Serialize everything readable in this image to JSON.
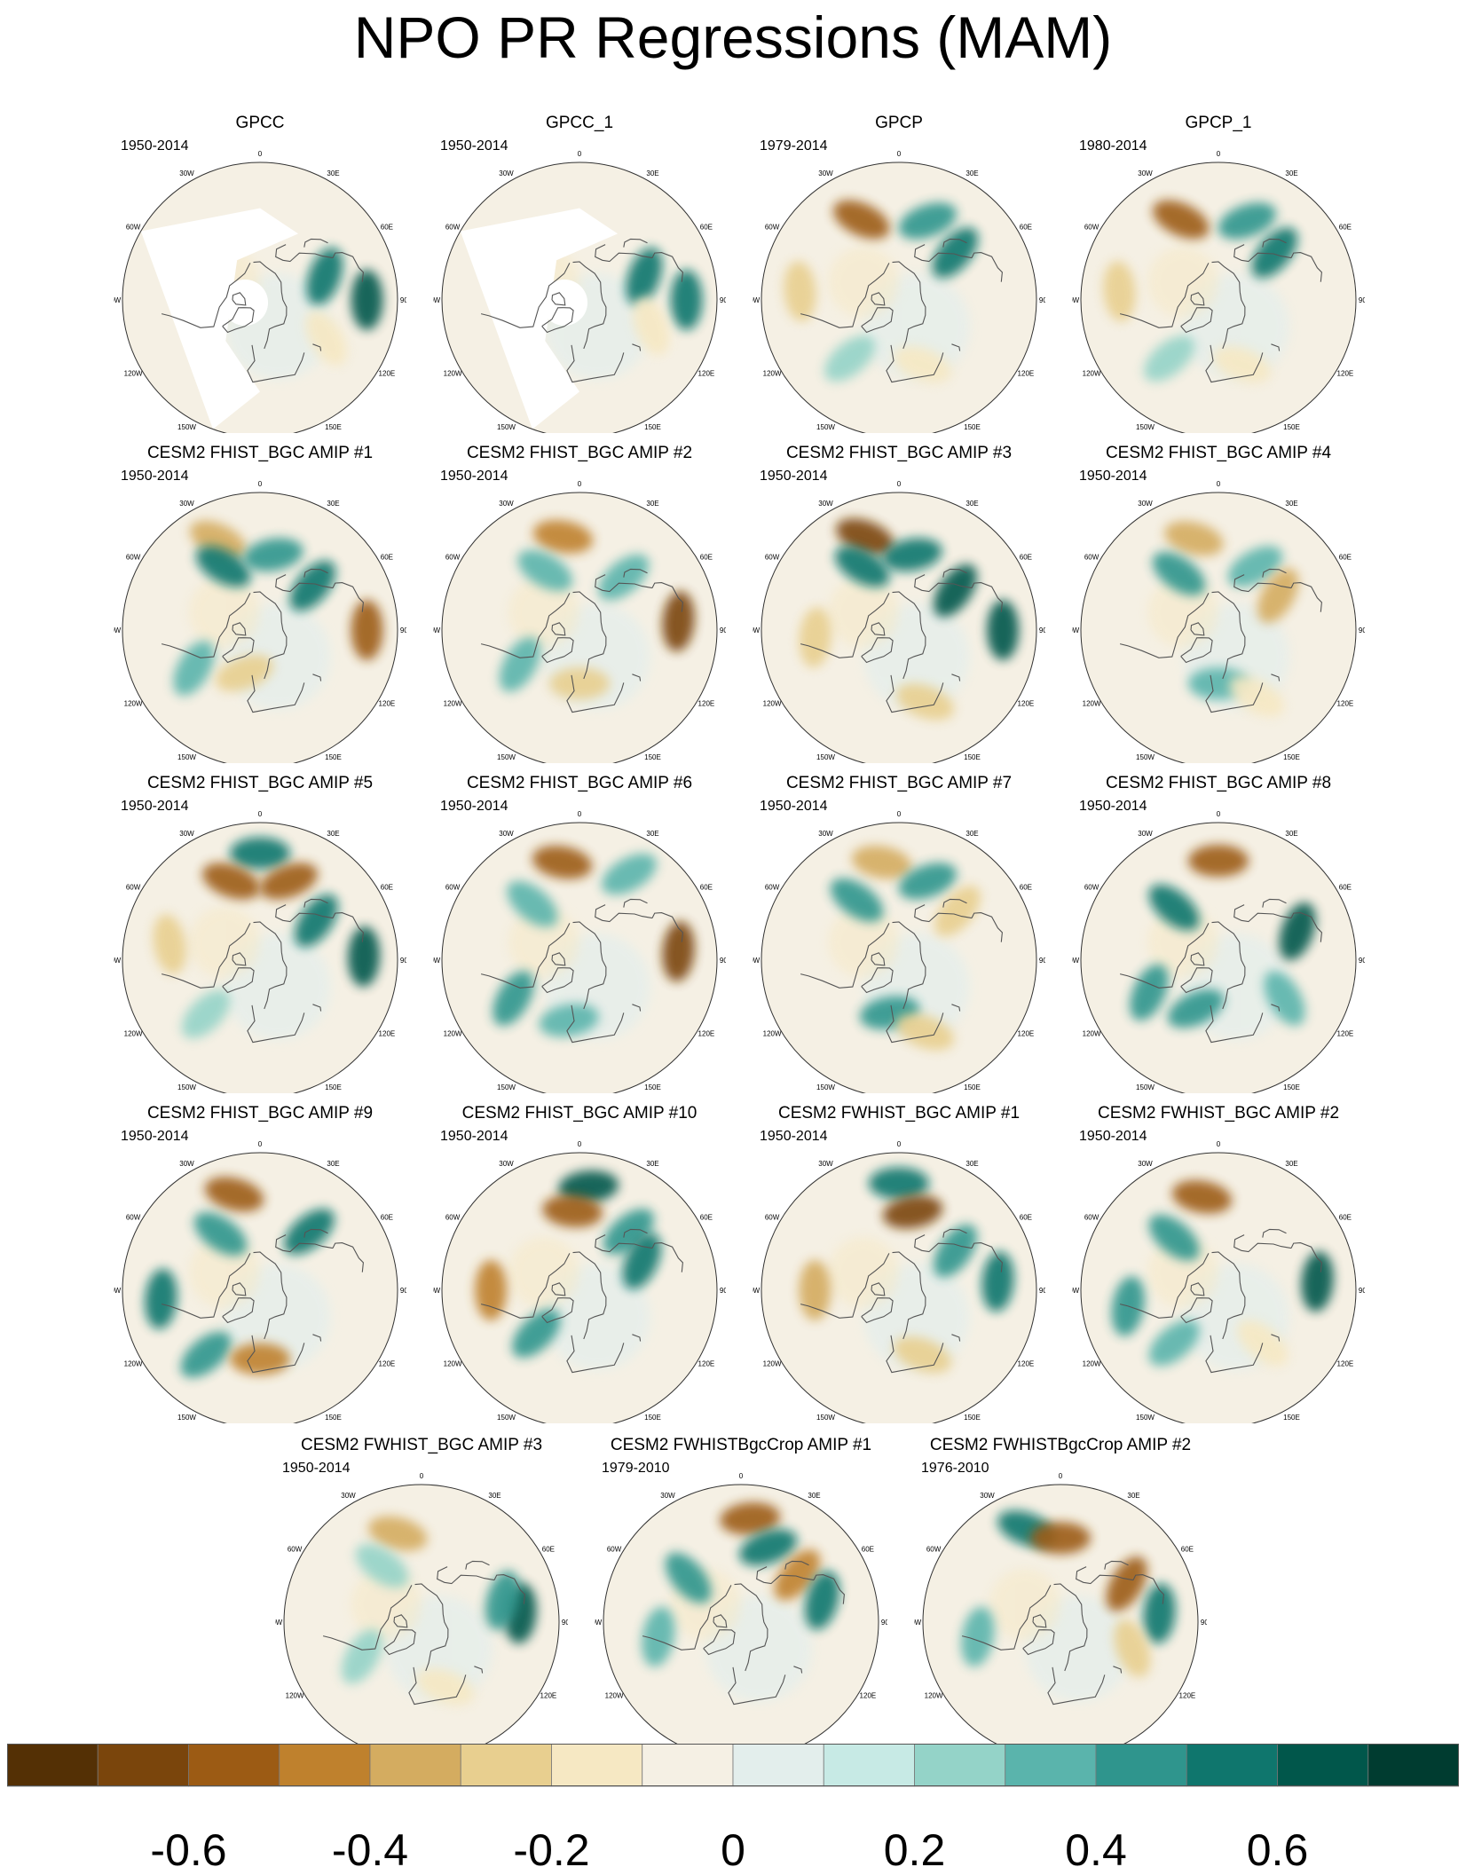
{
  "title": "NPO PR Regressions (MAM)",
  "lon_labels": [
    "180",
    "150E",
    "120E",
    "90E",
    "60E",
    "30E",
    "0",
    "30W",
    "60W",
    "90W",
    "120W",
    "150W"
  ],
  "colors": {
    "levels": [
      "#543005",
      "#7a450c",
      "#9c5b14",
      "#bf812d",
      "#d4ac60",
      "#e8cf8f",
      "#f6e8c3",
      "#f5f0e4",
      "#e3eeec",
      "#c7eae5",
      "#94d3c8",
      "#5ab4ac",
      "#2f958d",
      "#0f766d",
      "#01574b",
      "#003c30"
    ],
    "coast": "#555555",
    "rim": "#333333",
    "missing": "#ffffff"
  },
  "chart_data": {
    "type": "heatmap",
    "projection": "north-polar-stereographic",
    "variable": "PR",
    "season": "MAM",
    "colorbar": {
      "labels": [
        "-0.6",
        "-0.4",
        "-0.2",
        "0",
        "0.2",
        "0.4",
        "0.6"
      ],
      "label_values": [
        -0.6,
        -0.4,
        -0.2,
        0,
        0.2,
        0.4,
        0.6
      ],
      "levels": [
        -0.7,
        -0.6,
        -0.5,
        -0.4,
        -0.3,
        -0.2,
        -0.1,
        0,
        0.1,
        0.2,
        0.3,
        0.4,
        0.5,
        0.6,
        0.7
      ],
      "range": [
        -0.8,
        0.8
      ]
    },
    "panels": [
      {
        "title": "GPCC",
        "years": "1950-2014",
        "missing_land_ocean": true,
        "anomalies": [
          {
            "lon": 110,
            "lat": 45,
            "value": 0.5
          },
          {
            "lon": 90,
            "lat": 20,
            "value": 0.6
          },
          {
            "lon": 60,
            "lat": 40,
            "value": -0.15
          }
        ]
      },
      {
        "title": "GPCC_1",
        "years": "1950-2014",
        "missing_land_ocean": true,
        "anomalies": [
          {
            "lon": 110,
            "lat": 45,
            "value": 0.5
          },
          {
            "lon": 90,
            "lat": 20,
            "value": 0.55
          },
          {
            "lon": 70,
            "lat": 40,
            "value": -0.2
          }
        ]
      },
      {
        "title": "GPCP",
        "years": "1979-2014",
        "anomalies": [
          {
            "lon": -155,
            "lat": 32,
            "value": -0.6
          },
          {
            "lon": 160,
            "lat": 35,
            "value": 0.4
          },
          {
            "lon": 130,
            "lat": 42,
            "value": 0.5
          },
          {
            "lon": -95,
            "lat": 25,
            "value": -0.3
          },
          {
            "lon": -40,
            "lat": 40,
            "value": 0.25
          },
          {
            "lon": 20,
            "lat": 45,
            "value": -0.15
          }
        ]
      },
      {
        "title": "GPCP_1",
        "years": "1980-2014",
        "anomalies": [
          {
            "lon": -155,
            "lat": 32,
            "value": -0.6
          },
          {
            "lon": 160,
            "lat": 35,
            "value": 0.4
          },
          {
            "lon": 130,
            "lat": 42,
            "value": 0.55
          },
          {
            "lon": -95,
            "lat": 25,
            "value": -0.3
          },
          {
            "lon": -40,
            "lat": 40,
            "value": 0.25
          },
          {
            "lon": 20,
            "lat": 45,
            "value": -0.15
          }
        ]
      },
      {
        "title": "CESM2 FHIST_BGC AMIP #1",
        "years": "1950-2014",
        "anomalies": [
          {
            "lon": -155,
            "lat": 25,
            "value": -0.4
          },
          {
            "lon": -150,
            "lat": 42,
            "value": 0.5
          },
          {
            "lon": 170,
            "lat": 40,
            "value": 0.4
          },
          {
            "lon": 130,
            "lat": 45,
            "value": 0.55
          },
          {
            "lon": 90,
            "lat": 20,
            "value": -0.6
          },
          {
            "lon": -60,
            "lat": 40,
            "value": 0.35
          },
          {
            "lon": -20,
            "lat": 60,
            "value": -0.3
          }
        ]
      },
      {
        "title": "CESM2 FHIST_BGC AMIP #2",
        "years": "1950-2014",
        "anomalies": [
          {
            "lon": -170,
            "lat": 28,
            "value": -0.5
          },
          {
            "lon": -150,
            "lat": 45,
            "value": 0.35
          },
          {
            "lon": 140,
            "lat": 45,
            "value": 0.3
          },
          {
            "lon": 95,
            "lat": 25,
            "value": -0.7
          },
          {
            "lon": -60,
            "lat": 45,
            "value": 0.3
          },
          {
            "lon": 0,
            "lat": 55,
            "value": -0.3
          }
        ]
      },
      {
        "title": "CESM2 FHIST_BGC AMIP #3",
        "years": "1950-2014",
        "anomalies": [
          {
            "lon": -160,
            "lat": 25,
            "value": -0.7
          },
          {
            "lon": -150,
            "lat": 42,
            "value": 0.5
          },
          {
            "lon": 170,
            "lat": 40,
            "value": 0.5
          },
          {
            "lon": 125,
            "lat": 45,
            "value": 0.6
          },
          {
            "lon": 90,
            "lat": 22,
            "value": 0.65
          },
          {
            "lon": -85,
            "lat": 35,
            "value": -0.3
          },
          {
            "lon": 20,
            "lat": 40,
            "value": -0.3
          }
        ]
      },
      {
        "title": "CESM2 FHIST_BGC AMIP #4",
        "years": "1950-2014",
        "anomalies": [
          {
            "lon": -165,
            "lat": 28,
            "value": -0.35
          },
          {
            "lon": -145,
            "lat": 45,
            "value": 0.45
          },
          {
            "lon": 150,
            "lat": 42,
            "value": 0.3
          },
          {
            "lon": 120,
            "lat": 45,
            "value": -0.4
          },
          {
            "lon": 0,
            "lat": 55,
            "value": 0.35
          },
          {
            "lon": 30,
            "lat": 40,
            "value": -0.2
          }
        ]
      },
      {
        "title": "CESM2 FHIST_BGC AMIP #5",
        "years": "1950-2014",
        "anomalies": [
          {
            "lon": 180,
            "lat": 20,
            "value": 0.5
          },
          {
            "lon": -160,
            "lat": 35,
            "value": -0.6
          },
          {
            "lon": 160,
            "lat": 35,
            "value": -0.55
          },
          {
            "lon": 125,
            "lat": 45,
            "value": 0.5
          },
          {
            "lon": 92,
            "lat": 22,
            "value": 0.65
          },
          {
            "lon": -100,
            "lat": 30,
            "value": -0.3
          },
          {
            "lon": -45,
            "lat": 40,
            "value": 0.2
          }
        ]
      },
      {
        "title": "CESM2 FHIST_BGC AMIP #6",
        "years": "1950-2014",
        "anomalies": [
          {
            "lon": -170,
            "lat": 25,
            "value": -0.55
          },
          {
            "lon": -140,
            "lat": 42,
            "value": 0.35
          },
          {
            "lon": 150,
            "lat": 25,
            "value": 0.3
          },
          {
            "lon": 95,
            "lat": 25,
            "value": -0.7
          },
          {
            "lon": -60,
            "lat": 40,
            "value": 0.4
          },
          {
            "lon": -10,
            "lat": 50,
            "value": 0.35
          }
        ]
      },
      {
        "title": "CESM2 FHIST_BGC AMIP #7",
        "years": "1950-2014",
        "anomalies": [
          {
            "lon": -170,
            "lat": 25,
            "value": -0.4
          },
          {
            "lon": -145,
            "lat": 42,
            "value": 0.4
          },
          {
            "lon": 160,
            "lat": 35,
            "value": 0.45
          },
          {
            "lon": 130,
            "lat": 40,
            "value": -0.3
          },
          {
            "lon": -10,
            "lat": 55,
            "value": 0.45
          },
          {
            "lon": 20,
            "lat": 40,
            "value": -0.3
          }
        ]
      },
      {
        "title": "CESM2 FHIST_BGC AMIP #8",
        "years": "1950-2014",
        "anomalies": [
          {
            "lon": 180,
            "lat": 25,
            "value": -0.6
          },
          {
            "lon": -140,
            "lat": 45,
            "value": 0.5
          },
          {
            "lon": 110,
            "lat": 35,
            "value": 0.6
          },
          {
            "lon": -65,
            "lat": 40,
            "value": 0.4
          },
          {
            "lon": -25,
            "lat": 55,
            "value": 0.45
          },
          {
            "lon": 60,
            "lat": 40,
            "value": 0.3
          }
        ]
      },
      {
        "title": "CESM2 FHIST_BGC AMIP #9",
        "years": "1950-2014",
        "anomalies": [
          {
            "lon": -165,
            "lat": 25,
            "value": -0.6
          },
          {
            "lon": -145,
            "lat": 45,
            "value": 0.45
          },
          {
            "lon": 140,
            "lat": 40,
            "value": 0.5
          },
          {
            "lon": -85,
            "lat": 25,
            "value": 0.5
          },
          {
            "lon": -40,
            "lat": 35,
            "value": 0.45
          },
          {
            "lon": 0,
            "lat": 45,
            "value": -0.5
          }
        ]
      },
      {
        "title": "CESM2 FHIST_BGC AMIP #10",
        "years": "1950-2014",
        "anomalies": [
          {
            "lon": 175,
            "lat": 22,
            "value": 0.6
          },
          {
            "lon": -175,
            "lat": 38,
            "value": -0.55
          },
          {
            "lon": 140,
            "lat": 40,
            "value": 0.4
          },
          {
            "lon": 115,
            "lat": 45,
            "value": 0.5
          },
          {
            "lon": -90,
            "lat": 32,
            "value": -0.45
          },
          {
            "lon": -45,
            "lat": 50,
            "value": 0.4
          }
        ]
      },
      {
        "title": "CESM2 FWHIST_BGC AMIP #1",
        "years": "1950-2014",
        "anomalies": [
          {
            "lon": 180,
            "lat": 20,
            "value": 0.55
          },
          {
            "lon": 170,
            "lat": 38,
            "value": -0.7
          },
          {
            "lon": 125,
            "lat": 45,
            "value": 0.45
          },
          {
            "lon": 95,
            "lat": 25,
            "value": 0.55
          },
          {
            "lon": -90,
            "lat": 35,
            "value": -0.35
          },
          {
            "lon": 20,
            "lat": 45,
            "value": -0.25
          }
        ]
      },
      {
        "title": "CESM2 FWHIST_BGC AMIP #2",
        "years": "1950-2014",
        "anomalies": [
          {
            "lon": -170,
            "lat": 28,
            "value": -0.6
          },
          {
            "lon": -140,
            "lat": 45,
            "value": 0.4
          },
          {
            "lon": 95,
            "lat": 25,
            "value": 0.6
          },
          {
            "lon": -80,
            "lat": 30,
            "value": 0.4
          },
          {
            "lon": -40,
            "lat": 45,
            "value": 0.3
          },
          {
            "lon": 40,
            "lat": 45,
            "value": -0.2
          }
        ]
      },
      {
        "title": "CESM2 FWHIST_BGC AMIP #3",
        "years": "1950-2014",
        "anomalies": [
          {
            "lon": -165,
            "lat": 30,
            "value": -0.35
          },
          {
            "lon": -145,
            "lat": 45,
            "value": 0.2
          },
          {
            "lon": 95,
            "lat": 25,
            "value": 0.65
          },
          {
            "lon": 105,
            "lat": 35,
            "value": 0.4
          },
          {
            "lon": -60,
            "lat": 45,
            "value": 0.25
          },
          {
            "lon": 20,
            "lat": 45,
            "value": -0.2
          }
        ]
      },
      {
        "title": "CESM2 FWHIST_BGC AMIP #1",
        "years": "",
        "anomalies": []
      },
      {
        "title": "CESM2 FWHISTBgcCrop AMIP #1",
        "years": "1979-2010",
        "anomalies": [
          {
            "lon": 175,
            "lat": 22,
            "value": -0.6
          },
          {
            "lon": 160,
            "lat": 38,
            "value": 0.5
          },
          {
            "lon": 130,
            "lat": 42,
            "value": -0.5
          },
          {
            "lon": 105,
            "lat": 35,
            "value": 0.55
          },
          {
            "lon": -130,
            "lat": 45,
            "value": 0.4
          },
          {
            "lon": -80,
            "lat": 35,
            "value": 0.35
          }
        ]
      },
      {
        "title": "CESM2 FWHISTBgcCrop AMIP #2",
        "years": "1976-2010",
        "anomalies": [
          {
            "lon": -160,
            "lat": 25,
            "value": 0.5
          },
          {
            "lon": 180,
            "lat": 35,
            "value": -0.6
          },
          {
            "lon": 120,
            "lat": 40,
            "value": -0.55
          },
          {
            "lon": 95,
            "lat": 25,
            "value": 0.55
          },
          {
            "lon": -80,
            "lat": 35,
            "value": 0.3
          },
          {
            "lon": 70,
            "lat": 40,
            "value": -0.3
          }
        ]
      }
    ]
  }
}
